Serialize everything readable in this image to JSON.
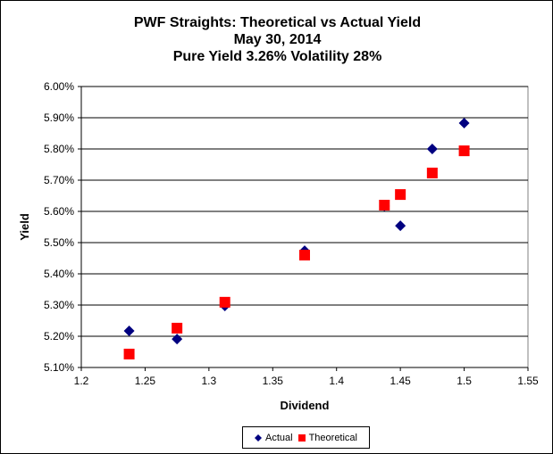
{
  "chart_data": {
    "type": "scatter",
    "title": [
      "PWF Straights: Theoretical vs Actual Yield",
      "May 30, 2014",
      "Pure Yield 3.26% Volatility 28%"
    ],
    "xlabel": "Dividend",
    "ylabel": "Yield",
    "xlim": [
      1.2,
      1.55
    ],
    "ylim": [
      5.1,
      6.0
    ],
    "xticks": [
      "1.2",
      "1.25",
      "1.3",
      "1.35",
      "1.4",
      "1.45",
      "1.5",
      "1.55"
    ],
    "yticks": [
      "5.10%",
      "5.20%",
      "5.30%",
      "5.40%",
      "5.50%",
      "5.60%",
      "5.70%",
      "5.80%",
      "5.90%",
      "6.00%"
    ],
    "grid": "horizontal",
    "legend_position": "bottom",
    "series": [
      {
        "name": "Actual",
        "marker": "diamond",
        "color": "#000080",
        "x": [
          1.2375,
          1.275,
          1.3125,
          1.375,
          1.4375,
          1.45,
          1.475,
          1.5
        ],
        "y": [
          5.217,
          5.191,
          5.297,
          5.474,
          5.617,
          5.554,
          5.8,
          5.883
        ]
      },
      {
        "name": "Theoretical",
        "marker": "square",
        "color": "#ff0000",
        "x": [
          1.2375,
          1.275,
          1.3125,
          1.375,
          1.4375,
          1.45,
          1.475,
          1.5
        ],
        "y": [
          5.143,
          5.226,
          5.309,
          5.46,
          5.62,
          5.654,
          5.723,
          5.794
        ]
      }
    ]
  }
}
